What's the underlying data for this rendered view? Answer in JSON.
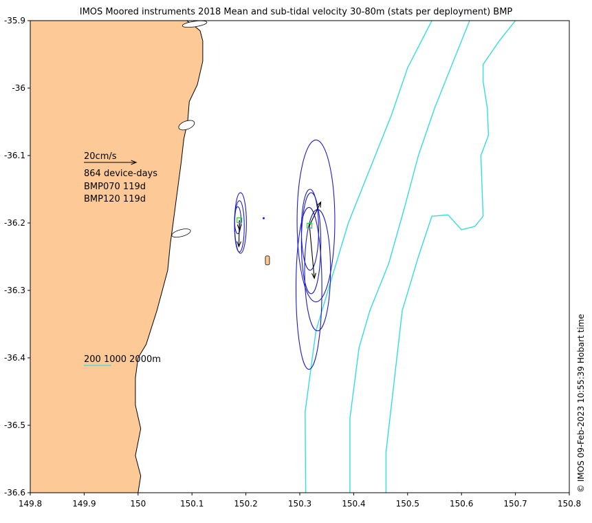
{
  "title": "IMOS Moored instruments 2018 Mean and sub-tidal velocity 30-80m (stats per deployment) BMP",
  "timestamp": "© IMOS 09-Feb-2023 10:55:39 Hobart time",
  "colors": {
    "land": "#fcc997",
    "isobath": "#33dddd",
    "ellipse": "#1a1acc",
    "arrow": "#000000",
    "mooring": "#33cc33"
  },
  "chart_data": {
    "type": "map",
    "xlim": [
      149.8,
      150.8
    ],
    "ylim": [
      -36.6,
      -35.9
    ],
    "x_ticks": [
      149.8,
      149.9,
      150,
      150.1,
      150.2,
      150.3,
      150.4,
      150.5,
      150.6,
      150.7,
      150.8
    ],
    "x_tick_labels": [
      "149.8",
      "149.9",
      "150",
      "150.1",
      "150.2",
      "150.3",
      "150.4",
      "150.5",
      "150.6",
      "150.7",
      "150.8"
    ],
    "y_ticks": [
      -35.9,
      -36,
      -36.1,
      -36.2,
      -36.3,
      -36.4,
      -36.5,
      -36.6
    ],
    "y_tick_labels": [
      "-35.9",
      "-36",
      "-36.1",
      "-36.2",
      "-36.3",
      "-36.4",
      "-36.5",
      "-36.6"
    ],
    "legend": {
      "scale_label": "20cm/s",
      "device_days": "864 device-days",
      "deployments": [
        "BMP070 119d",
        "BMP120 119d"
      ],
      "isobath_label": "200 1000 2000m"
    },
    "moorings": [
      {
        "name": "BMP070",
        "lon": 150.188,
        "lat": -36.196
      },
      {
        "name": "BMP120",
        "lon": 150.318,
        "lat": -36.204
      }
    ],
    "velocity_arrows": [
      {
        "lon0": 150.188,
        "lat0": -36.196,
        "lon1": 150.188,
        "lat1": -36.21
      },
      {
        "lon0": 150.188,
        "lat0": -36.196,
        "lon1": 150.187,
        "lat1": -36.235
      },
      {
        "lon0": 150.318,
        "lat0": -36.204,
        "lon1": 150.339,
        "lat1": -36.169
      },
      {
        "lon0": 150.318,
        "lat0": -36.204,
        "lon1": 150.327,
        "lat1": -36.282
      }
    ],
    "ellipses": [
      {
        "lon": 150.19,
        "lat": -36.2,
        "rx": 0.011,
        "ry": 0.045
      },
      {
        "lon": 150.188,
        "lat": -36.205,
        "rx": 0.009,
        "ry": 0.038
      },
      {
        "lon": 150.185,
        "lat": -36.196,
        "rx": 0.006,
        "ry": 0.02
      },
      {
        "lon": 150.33,
        "lat": -36.197,
        "rx": 0.035,
        "ry": 0.12
      },
      {
        "lon": 150.317,
        "lat": -36.297,
        "rx": 0.024,
        "ry": 0.12
      },
      {
        "lon": 150.333,
        "lat": -36.27,
        "rx": 0.024,
        "ry": 0.09
      },
      {
        "lon": 150.319,
        "lat": -36.21,
        "rx": 0.016,
        "ry": 0.06
      },
      {
        "lon": 150.321,
        "lat": -36.23,
        "rx": 0.018,
        "ry": 0.075
      }
    ],
    "isobaths": [
      {
        "depth": 200,
        "points": [
          [
            150.311,
            -36.6
          ],
          [
            150.31,
            -36.48
          ],
          [
            150.33,
            -36.36
          ],
          [
            150.36,
            -36.28
          ],
          [
            150.39,
            -36.2
          ],
          [
            150.43,
            -36.12
          ],
          [
            150.47,
            -36.04
          ],
          [
            150.5,
            -35.97
          ],
          [
            150.545,
            -35.9
          ]
        ]
      },
      {
        "depth": 1000,
        "points": [
          [
            150.393,
            -36.6
          ],
          [
            150.393,
            -36.49
          ],
          [
            150.41,
            -36.385
          ],
          [
            150.43,
            -36.33
          ],
          [
            150.465,
            -36.26
          ],
          [
            150.495,
            -36.175
          ],
          [
            150.52,
            -36.1
          ],
          [
            150.55,
            -36.03
          ],
          [
            150.585,
            -35.96
          ],
          [
            150.615,
            -35.9
          ]
        ]
      },
      {
        "depth": 2000,
        "points": [
          [
            150.46,
            -36.6
          ],
          [
            150.46,
            -36.54
          ],
          [
            150.47,
            -36.47
          ],
          [
            150.49,
            -36.33
          ],
          [
            150.52,
            -36.25
          ],
          [
            150.545,
            -36.19
          ],
          [
            150.575,
            -36.188
          ],
          [
            150.6,
            -36.21
          ],
          [
            150.625,
            -36.205
          ],
          [
            150.64,
            -36.19
          ],
          [
            150.636,
            -36.1
          ],
          [
            150.65,
            -36.07
          ],
          [
            150.648,
            -36.03
          ],
          [
            150.64,
            -35.99
          ],
          [
            150.64,
            -35.965
          ],
          [
            150.67,
            -35.93
          ],
          [
            150.7,
            -35.9
          ]
        ]
      }
    ],
    "coastline": [
      [
        149.8,
        -35.9
      ],
      [
        150.09,
        -35.9
      ],
      [
        150.1,
        -35.905
      ],
      [
        150.115,
        -35.915
      ],
      [
        150.12,
        -35.93
      ],
      [
        150.12,
        -35.96
      ],
      [
        150.11,
        -35.995
      ],
      [
        150.095,
        -36.02
      ],
      [
        150.092,
        -36.05
      ],
      [
        150.085,
        -36.075
      ],
      [
        150.08,
        -36.11
      ],
      [
        150.075,
        -36.14
      ],
      [
        150.07,
        -36.17
      ],
      [
        150.065,
        -36.2
      ],
      [
        150.06,
        -36.23
      ],
      [
        150.055,
        -36.27
      ],
      [
        150.045,
        -36.3
      ],
      [
        150.035,
        -36.33
      ],
      [
        150.025,
        -36.355
      ],
      [
        150.015,
        -36.38
      ],
      [
        150.0,
        -36.4
      ],
      [
        149.995,
        -36.43
      ],
      [
        149.995,
        -36.47
      ],
      [
        150.005,
        -36.505
      ],
      [
        149.995,
        -36.545
      ],
      [
        150.005,
        -36.575
      ],
      [
        150.0,
        -36.6
      ],
      [
        149.8,
        -36.6
      ]
    ],
    "island": {
      "lon": 150.24,
      "lat": -36.255
    }
  }
}
